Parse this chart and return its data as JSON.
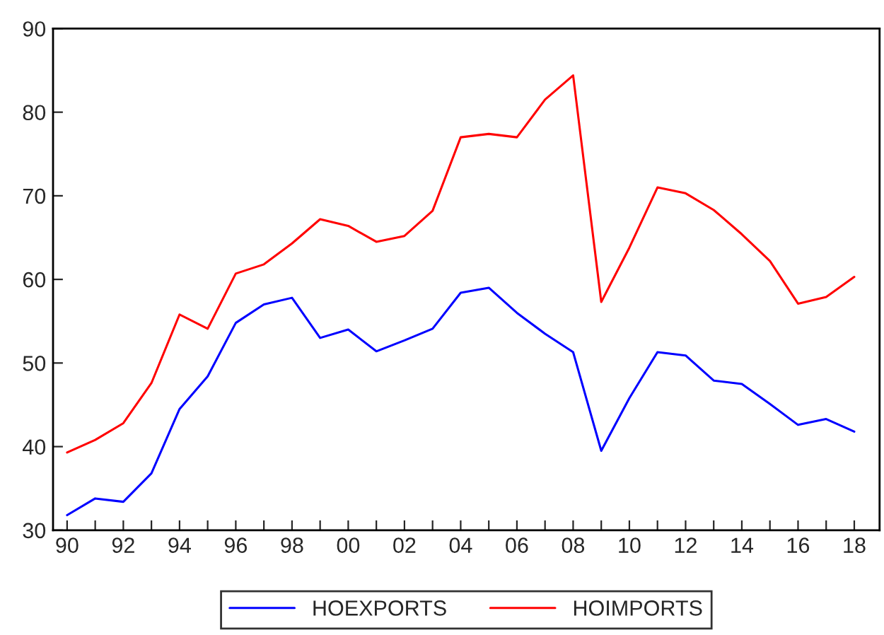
{
  "chart_data": {
    "type": "line",
    "x": [
      1990,
      1991,
      1992,
      1993,
      1994,
      1995,
      1996,
      1997,
      1998,
      1999,
      2000,
      2001,
      2002,
      2003,
      2004,
      2005,
      2006,
      2007,
      2008,
      2009,
      2010,
      2011,
      2012,
      2013,
      2014,
      2015,
      2016,
      2017,
      2018
    ],
    "series": [
      {
        "name": "HOEXPORTS",
        "color": "#0000ff",
        "values": [
          31.8,
          33.8,
          33.4,
          36.8,
          44.5,
          48.4,
          54.8,
          57.0,
          57.8,
          53.0,
          54.0,
          51.4,
          52.7,
          54.1,
          58.4,
          59.0,
          56.0,
          53.5,
          51.3,
          39.5,
          45.8,
          51.3,
          50.9,
          47.9,
          47.5,
          45.1,
          42.6,
          43.3,
          41.8
        ]
      },
      {
        "name": "HOIMPORTS",
        "color": "#ff0000",
        "values": [
          39.3,
          40.8,
          42.8,
          47.6,
          55.8,
          54.1,
          60.7,
          61.8,
          64.3,
          67.2,
          66.4,
          64.5,
          65.2,
          68.2,
          77.0,
          77.4,
          77.0,
          81.5,
          84.4,
          57.3,
          63.8,
          71.0,
          70.3,
          68.3,
          65.4,
          62.2,
          57.1,
          57.9,
          60.3
        ]
      }
    ],
    "xlim": [
      1989.5,
      2018.9
    ],
    "xticks": [
      {
        "value": 1990,
        "label": "90"
      },
      {
        "value": 1991,
        "label": null
      },
      {
        "value": 1992,
        "label": "92"
      },
      {
        "value": 1993,
        "label": null
      },
      {
        "value": 1994,
        "label": "94"
      },
      {
        "value": 1995,
        "label": null
      },
      {
        "value": 1996,
        "label": "96"
      },
      {
        "value": 1997,
        "label": null
      },
      {
        "value": 1998,
        "label": "98"
      },
      {
        "value": 1999,
        "label": null
      },
      {
        "value": 2000,
        "label": "00"
      },
      {
        "value": 2001,
        "label": null
      },
      {
        "value": 2002,
        "label": "02"
      },
      {
        "value": 2003,
        "label": null
      },
      {
        "value": 2004,
        "label": "04"
      },
      {
        "value": 2005,
        "label": null
      },
      {
        "value": 2006,
        "label": "06"
      },
      {
        "value": 2007,
        "label": null
      },
      {
        "value": 2008,
        "label": "08"
      },
      {
        "value": 2009,
        "label": null
      },
      {
        "value": 2010,
        "label": "10"
      },
      {
        "value": 2011,
        "label": null
      },
      {
        "value": 2012,
        "label": "12"
      },
      {
        "value": 2013,
        "label": null
      },
      {
        "value": 2014,
        "label": "14"
      },
      {
        "value": 2015,
        "label": null
      },
      {
        "value": 2016,
        "label": "16"
      },
      {
        "value": 2017,
        "label": null
      },
      {
        "value": 2018,
        "label": "18"
      }
    ],
    "ylim": [
      30,
      90
    ],
    "yticks": [
      30,
      40,
      50,
      60,
      70,
      80,
      90
    ],
    "legend": "bottom",
    "marker": "none",
    "line_style": "solid"
  }
}
